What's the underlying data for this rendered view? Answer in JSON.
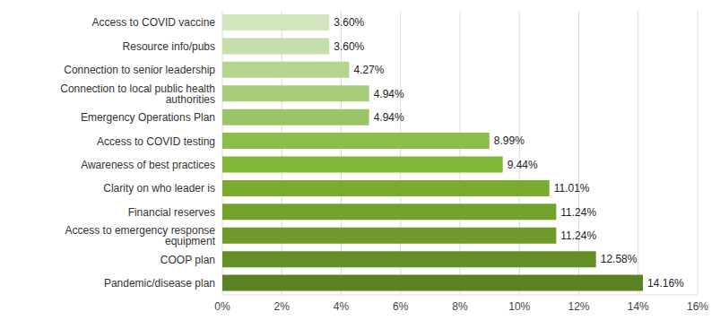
{
  "chart_data": {
    "type": "bar",
    "orientation": "horizontal",
    "categories": [
      "Access to COVID vaccine",
      "Resource info/pubs",
      "Connection to senior leadership",
      "Connection to local public health authorities",
      "Emergency Operations Plan",
      "Access to COVID testing",
      "Awareness of best practices",
      "Clarity on who leader is",
      "Financial reserves",
      "Access to emergency response equipment",
      "COOP plan",
      "Pandemic/disease plan"
    ],
    "values": [
      3.6,
      3.6,
      4.27,
      4.94,
      4.94,
      8.99,
      9.44,
      11.01,
      11.24,
      11.24,
      12.58,
      14.16
    ],
    "value_labels": [
      "3.60%",
      "3.60%",
      "4.27%",
      "4.94%",
      "4.94%",
      "8.99%",
      "9.44%",
      "11.01%",
      "11.24%",
      "11.24%",
      "12.58%",
      "14.16%"
    ],
    "data_labels": true,
    "colors": [
      "#d4e6bf",
      "#c5deaa",
      "#b4d48f",
      "#a6cd7a",
      "#99c566",
      "#8bbf4a",
      "#82b636",
      "#79ab2e",
      "#72a22a",
      "#6d9a28",
      "#648f25",
      "#5b8222"
    ],
    "xlim": [
      0,
      16
    ],
    "xticks": [
      {
        "value": 0,
        "label": "0%"
      },
      {
        "value": 2,
        "label": "2%"
      },
      {
        "value": 4,
        "label": "4%"
      },
      {
        "value": 6,
        "label": "6%"
      },
      {
        "value": 8,
        "label": "8%"
      },
      {
        "value": 10,
        "label": "10%"
      },
      {
        "value": 12,
        "label": "12%"
      },
      {
        "value": 14,
        "label": "14%"
      },
      {
        "value": 16,
        "label": "16%"
      }
    ],
    "grid": true
  }
}
